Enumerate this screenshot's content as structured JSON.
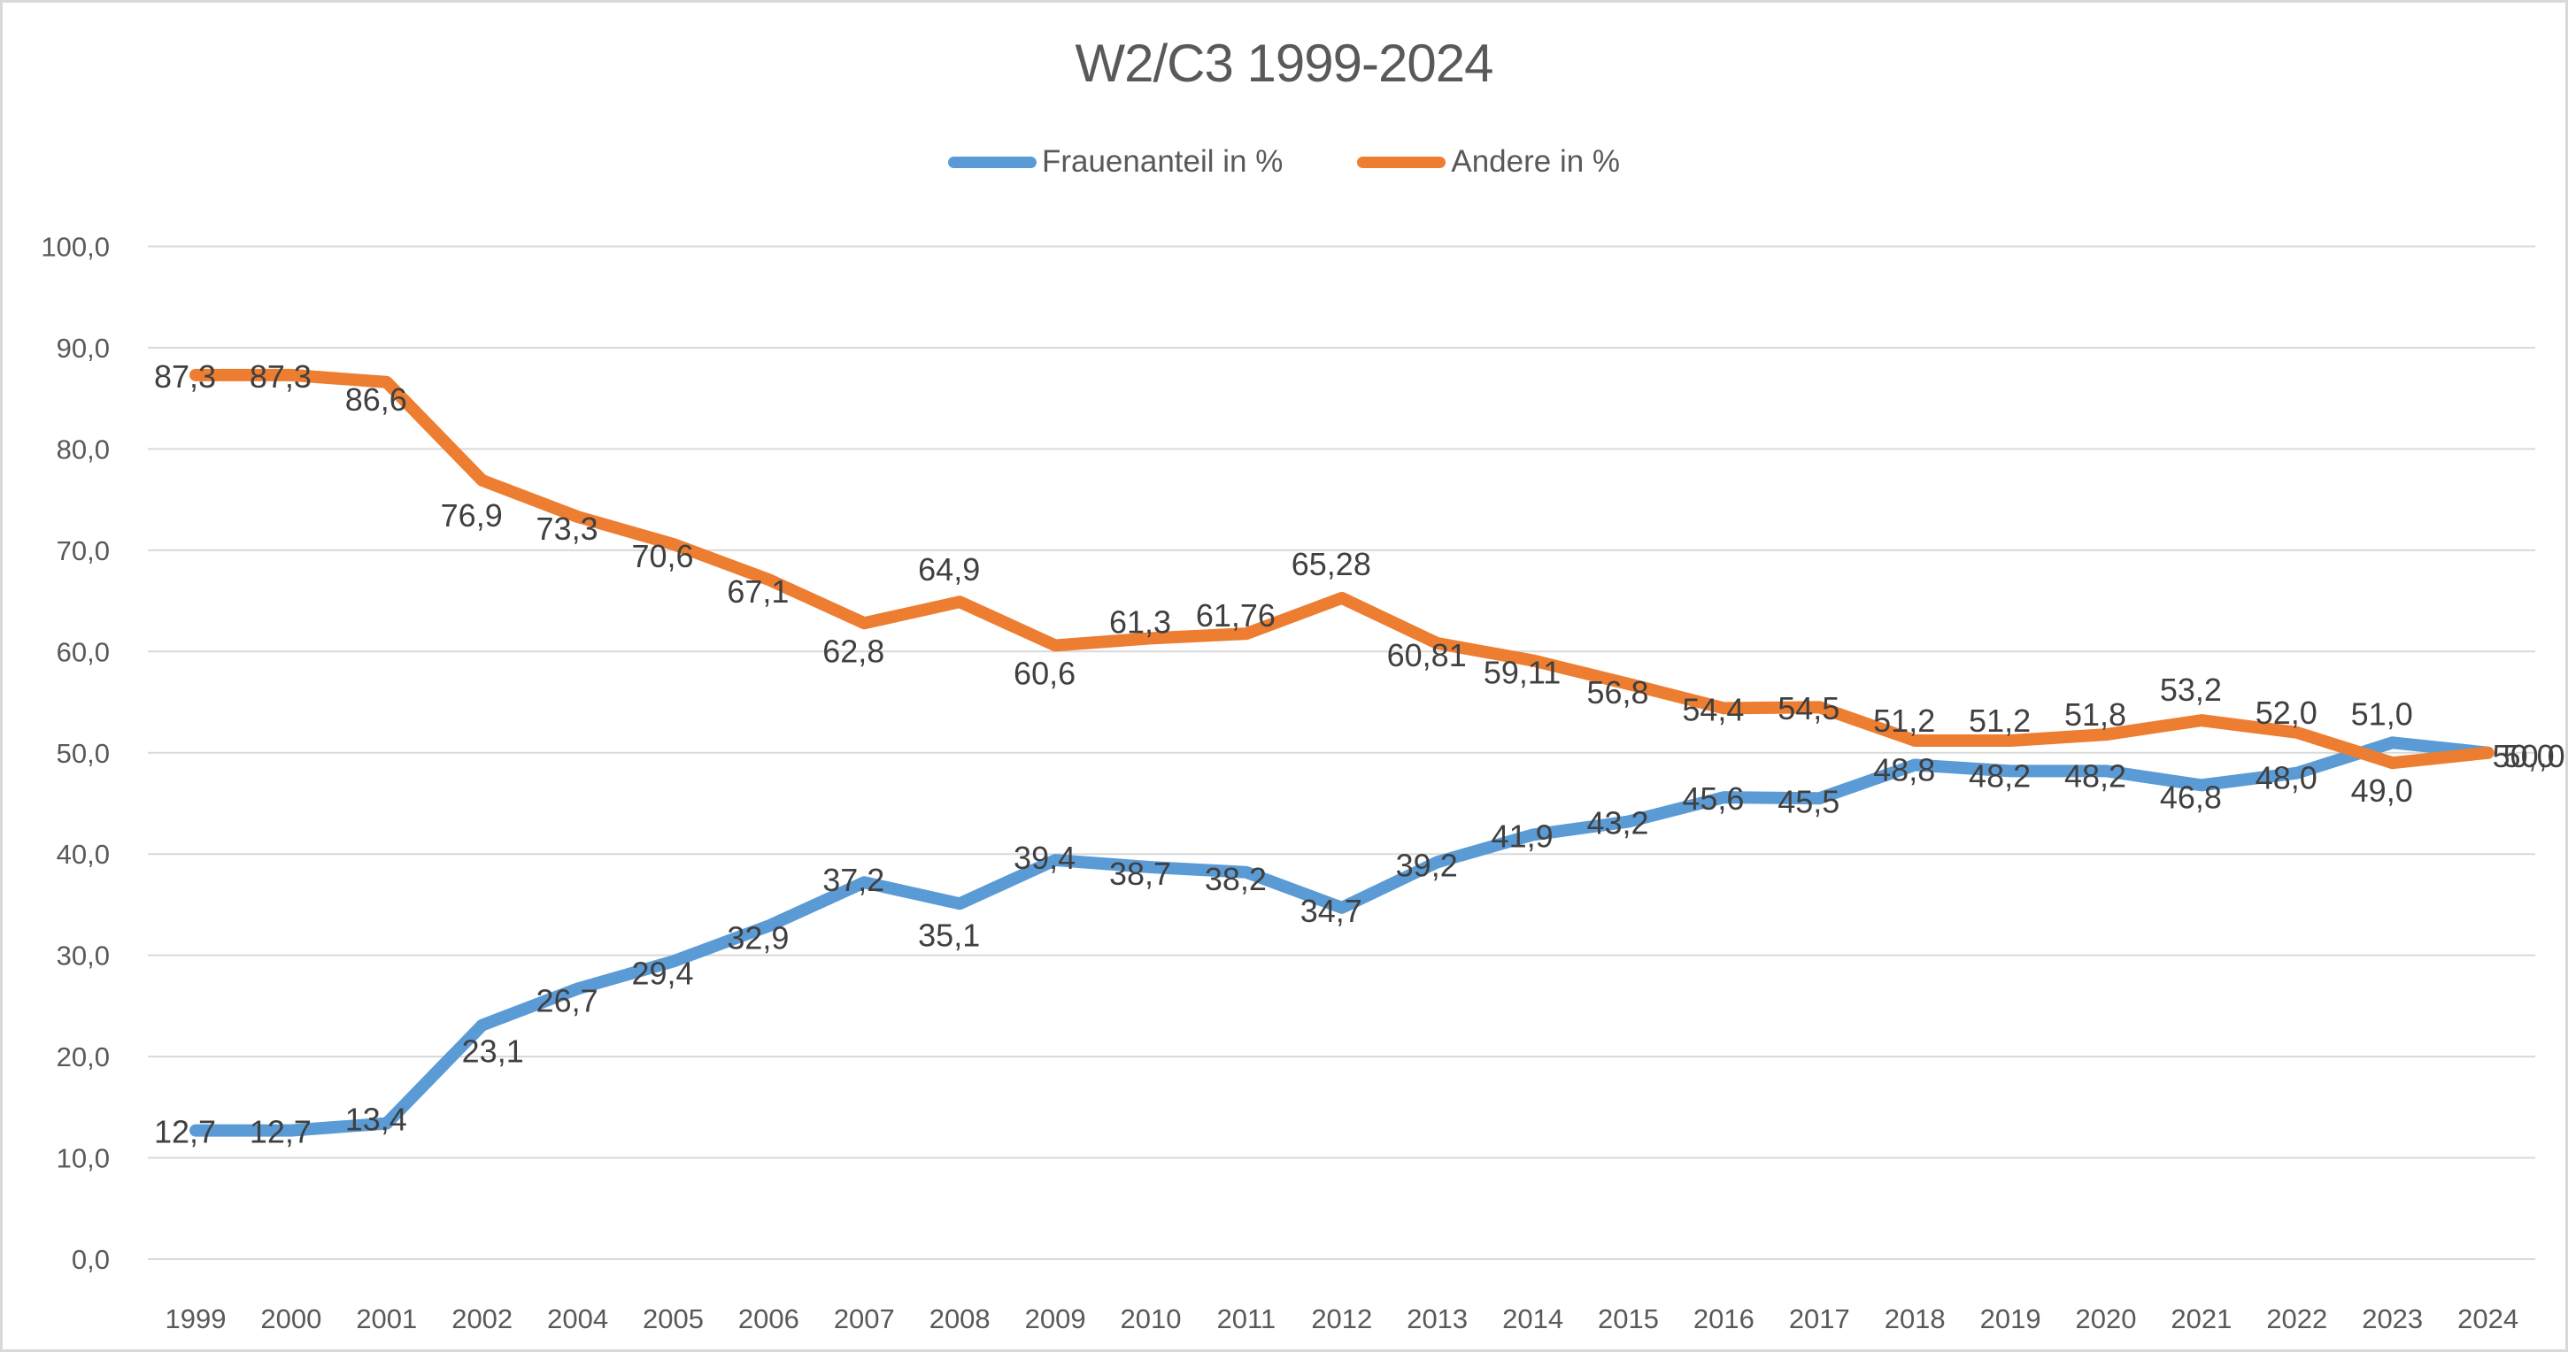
{
  "chart_data": {
    "type": "line",
    "title": "W2/C3 1999-2024",
    "categories": [
      "1999",
      "2000",
      "2001",
      "2002",
      "2004",
      "2005",
      "2006",
      "2007",
      "2008",
      "2009",
      "2010",
      "2011",
      "2012",
      "2013",
      "2014",
      "2015",
      "2016",
      "2017",
      "2018",
      "2019",
      "2020",
      "2021",
      "2022",
      "2023",
      "2024"
    ],
    "series": [
      {
        "name": "Frauenanteil in %",
        "color": "#5B9BD5",
        "values": [
          12.7,
          12.7,
          13.4,
          23.1,
          26.7,
          29.4,
          32.9,
          37.2,
          35.1,
          39.4,
          38.7,
          38.2,
          34.7,
          39.2,
          41.9,
          43.2,
          45.6,
          45.5,
          48.8,
          48.2,
          48.2,
          46.8,
          48.0,
          51.0,
          50.0
        ],
        "labels": [
          "12,7",
          "12,7",
          "13,4",
          "23,1",
          "26,7",
          "29,4",
          "32,9",
          "37,2",
          "35,1",
          "39,4",
          "38,7",
          "38,2",
          "34,7",
          "39,2",
          "41,9",
          "43,2",
          "45,6",
          "45,5",
          "48,8",
          "48,2",
          "48,2",
          "46,8",
          "48,0",
          "51,0",
          "50,0"
        ]
      },
      {
        "name": "Andere in %",
        "color": "#ED7D31",
        "values": [
          87.3,
          87.3,
          86.6,
          76.9,
          73.3,
          70.6,
          67.1,
          62.8,
          64.9,
          60.6,
          61.3,
          61.76,
          65.28,
          60.81,
          59.11,
          56.8,
          54.4,
          54.5,
          51.2,
          51.2,
          51.8,
          53.2,
          52.0,
          49.0,
          50.0
        ],
        "labels": [
          "87,3",
          "87,3",
          "86,6",
          "76,9",
          "73,3",
          "70,6",
          "67,1",
          "62,8",
          "64,9",
          "60,6",
          "61,3",
          "61,76",
          "65,28",
          "60,81",
          "59,11",
          "56,8",
          "54,4",
          "54,5",
          "51,2",
          "51,2",
          "51,8",
          "53,2",
          "52,0",
          "49,0",
          "50,0"
        ]
      }
    ],
    "ylim": [
      0,
      100
    ],
    "ytick_step": 10,
    "ytick_labels": [
      "100,0",
      "90,0",
      "80,0",
      "70,0",
      "60,0",
      "50,0",
      "40,0",
      "30,0",
      "20,0",
      "10,0",
      "0,0"
    ],
    "xlabel": "",
    "ylabel": "",
    "grid": true,
    "legend_position": "top",
    "colors": {
      "grid": "#D9D9D9",
      "axis_text": "#595959",
      "data_label_text": "#404040",
      "title_text": "#595959",
      "background": "#FFFFFF",
      "border": "#D8D8D8"
    }
  }
}
